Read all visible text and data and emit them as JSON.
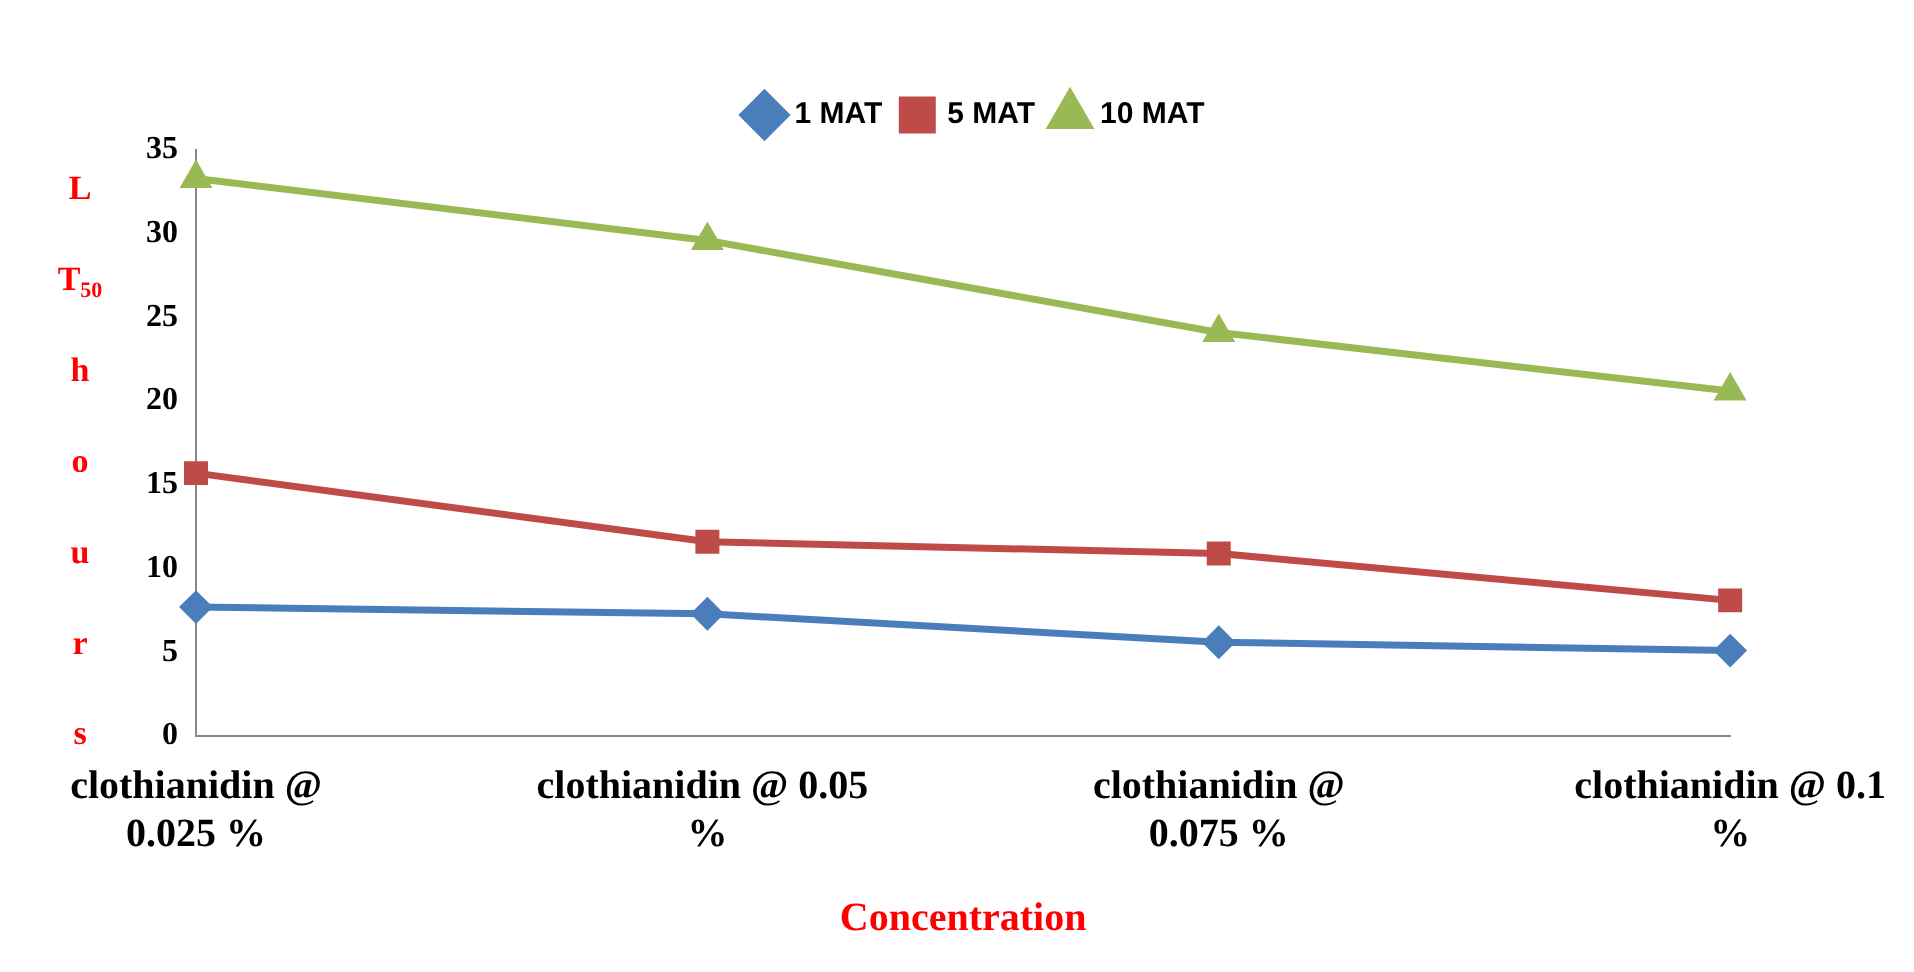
{
  "chart_data": {
    "type": "line",
    "xlabel": "Concentration",
    "ylabel": "LT$_{50}$ hours",
    "categories": [
      "clothianidin @ 0.025 %",
      "clothianidin @ 0.05  %",
      "clothianidin @ 0.075 %",
      "clothianidin @ 0.1 %"
    ],
    "series": [
      {
        "name": "1 MAT",
        "color": "#4a7ebb",
        "marker": "diamond",
        "values": [
          7.7,
          7.3,
          5.6,
          5.1
        ]
      },
      {
        "name": "5 MAT",
        "color": "#be4b48",
        "marker": "square",
        "values": [
          15.7,
          11.6,
          10.9,
          8.1
        ]
      },
      {
        "name": "10 MAT",
        "color": "#98b954",
        "marker": "triangle",
        "values": [
          33.3,
          29.6,
          24.1,
          20.6
        ]
      }
    ],
    "ylim": [
      0,
      35
    ],
    "yticks": [
      0,
      5,
      10,
      15,
      20,
      25,
      30,
      35
    ],
    "grid": false,
    "legend": "top"
  }
}
